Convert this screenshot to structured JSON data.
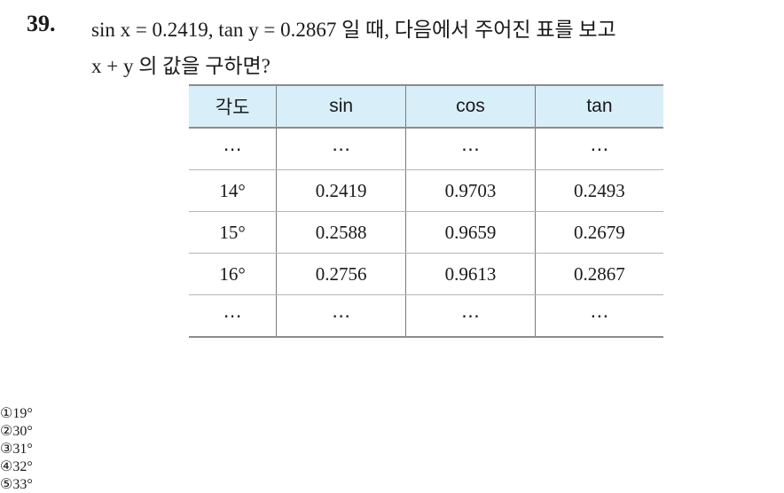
{
  "problem": {
    "number": "39.",
    "question": {
      "lines": [
        "sin x = 0.2419,  tan y = 0.2867 일 때, 다음에서 주어진 표를 보고",
        "x + y 의 값을 구하면?"
      ]
    },
    "table": {
      "headers": [
        "각도",
        "sin",
        "cos",
        "tan"
      ],
      "rows": [
        [
          "⋯",
          "⋯",
          "⋯",
          "⋯"
        ],
        [
          "14°",
          "0.2419",
          "0.9703",
          "0.2493"
        ],
        [
          "15°",
          "0.2588",
          "0.9659",
          "0.2679"
        ],
        [
          "16°",
          "0.2756",
          "0.9613",
          "0.2867"
        ],
        [
          "⋯",
          "⋯",
          "⋯",
          "⋯"
        ]
      ]
    },
    "choices": [
      {
        "marker": "①",
        "text": "19°"
      },
      {
        "marker": "②",
        "text": "30°"
      },
      {
        "marker": "③",
        "text": "31°"
      },
      {
        "marker": "④",
        "text": "32°"
      },
      {
        "marker": "⑤",
        "text": "33°"
      }
    ]
  }
}
